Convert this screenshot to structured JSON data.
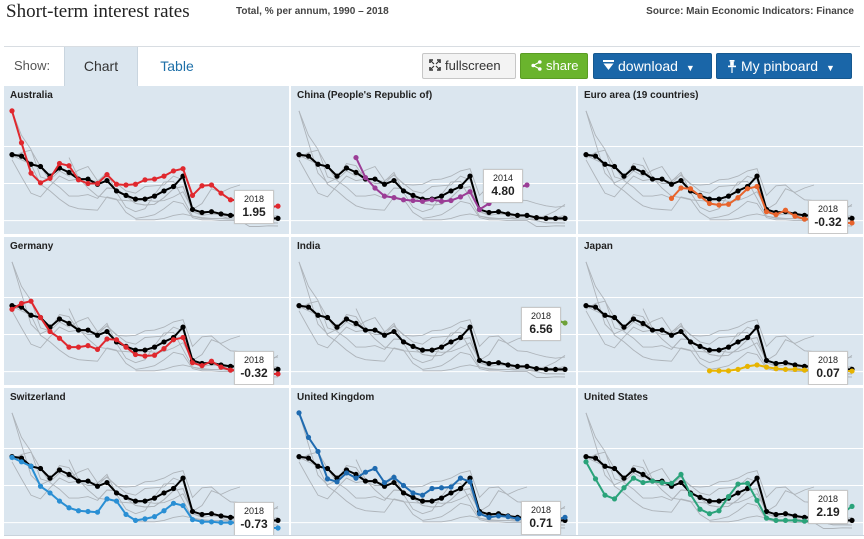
{
  "header": {
    "title": "Short-term interest rates",
    "subtitle": "Total, % per annum, 1990 – 2018",
    "source": "Source: Main Economic Indicators: Finance"
  },
  "toolbar": {
    "show_label": "Show:",
    "tab_chart": "Chart",
    "tab_table": "Table",
    "fullscreen_label": "fullscreen",
    "share_label": "share",
    "download_label": "download",
    "pinboard_label": "My pinboard"
  },
  "icons": {
    "fullscreen": "fullscreen-icon",
    "share": "share-icon",
    "download": "download-icon",
    "pin": "pin-icon",
    "caret": "chevron-down-icon"
  },
  "colors": {
    "panel_bg": "#dbe6ef",
    "oecd_series": "#000000",
    "background_series": "#aeb4ba",
    "share_green": "#6ab42d",
    "button_blue": "#1a66a8"
  },
  "chart_data": {
    "type": "line",
    "layout": "small-multiples",
    "x_range": [
      1990,
      2018
    ],
    "ylim": [
      -1,
      16
    ],
    "grid": true,
    "highlight_series": "OECD - Total",
    "panels": [
      {
        "name": "Australia",
        "color": "#e0282e",
        "values": [
          14.8,
          10.5,
          6.4,
          5.1,
          5.7,
          7.7,
          7.4,
          5.5,
          5.0,
          5.0,
          6.2,
          4.9,
          4.8,
          4.9,
          5.5,
          5.6,
          6.0,
          6.7,
          7.0,
          3.4,
          4.7,
          4.8,
          3.7,
          2.8,
          2.7,
          2.3,
          2.0,
          1.8,
          1.95
        ],
        "callout_year": "2018",
        "callout_value": "1.95"
      },
      {
        "name": "China (People's Republic of)",
        "color": "#9b3d96",
        "values": [
          null,
          null,
          null,
          null,
          null,
          null,
          8.5,
          5.8,
          4.4,
          3.3,
          3.1,
          2.8,
          2.7,
          2.6,
          2.8,
          2.6,
          2.7,
          3.2,
          3.9,
          1.5,
          2.3,
          4.3,
          3.8,
          4.4,
          4.8,
          null,
          null,
          null,
          null
        ],
        "callout_year": "2014",
        "callout_value": "4.80"
      },
      {
        "name": "Euro area (19 countries)",
        "color": "#e8642c",
        "values": [
          null,
          null,
          null,
          null,
          null,
          null,
          null,
          null,
          null,
          3.0,
          4.4,
          4.3,
          3.3,
          2.3,
          2.1,
          2.2,
          3.1,
          4.3,
          4.6,
          1.2,
          0.8,
          1.4,
          0.6,
          0.2,
          0.2,
          0.0,
          -0.3,
          -0.3,
          -0.32
        ],
        "callout_year": "2018",
        "callout_value": "-0.32"
      },
      {
        "name": "Germany",
        "color": "#e0282e",
        "values": [
          8.4,
          9.2,
          9.5,
          7.3,
          5.4,
          4.5,
          3.3,
          3.3,
          3.5,
          3.0,
          4.4,
          4.3,
          3.3,
          2.3,
          2.1,
          2.2,
          3.1,
          4.3,
          4.6,
          1.2,
          0.8,
          1.4,
          0.6,
          0.2,
          0.2,
          0.0,
          -0.3,
          -0.3,
          -0.32
        ],
        "callout_year": "2018",
        "callout_value": "-0.32"
      },
      {
        "name": "India",
        "color": "#6fa23a",
        "values": [
          null,
          null,
          null,
          null,
          null,
          null,
          null,
          null,
          null,
          null,
          null,
          null,
          null,
          null,
          null,
          null,
          null,
          null,
          null,
          null,
          null,
          null,
          null,
          null,
          null,
          null,
          null,
          null,
          null
        ],
        "tail": [
          {
            "x": 2014,
            "y": 8.3
          },
          {
            "x": 2018,
            "y": 6.56
          }
        ],
        "callout_year": "2018",
        "callout_value": "6.56"
      },
      {
        "name": "Japan",
        "color": "#e7b400",
        "values": [
          null,
          null,
          null,
          null,
          null,
          null,
          null,
          null,
          null,
          null,
          null,
          null,
          null,
          0.1,
          0.1,
          0.1,
          0.3,
          0.7,
          0.9,
          0.6,
          0.4,
          0.3,
          0.3,
          0.2,
          0.2,
          0.2,
          0.1,
          0.1,
          0.07
        ],
        "callout_year": "2018",
        "callout_value": "0.07"
      },
      {
        "name": "Switzerland",
        "color": "#2a8fd4",
        "values": [
          8.8,
          8.2,
          7.6,
          4.9,
          4.0,
          2.9,
          2.0,
          1.6,
          1.5,
          1.4,
          3.2,
          2.9,
          1.1,
          0.3,
          0.5,
          0.8,
          1.6,
          2.6,
          2.3,
          0.4,
          0.1,
          0.1,
          0.0,
          0.0,
          0.0,
          -0.8,
          -0.8,
          -0.7,
          -0.73
        ],
        "callout_year": "2018",
        "callout_value": "-0.73"
      },
      {
        "name": "United Kingdom",
        "color": "#1f6bb0",
        "values": [
          14.8,
          11.5,
          9.6,
          5.9,
          5.5,
          6.7,
          6.0,
          6.8,
          7.3,
          5.4,
          6.1,
          5.0,
          4.0,
          3.7,
          4.6,
          4.7,
          4.8,
          6.0,
          5.5,
          1.2,
          0.7,
          0.9,
          0.8,
          0.5,
          0.5,
          0.6,
          0.5,
          0.4,
          0.71
        ],
        "callout_year": "2018",
        "callout_value": "0.71"
      },
      {
        "name": "United States",
        "color": "#2aa37a",
        "values": [
          8.2,
          5.9,
          3.7,
          3.2,
          4.7,
          6.0,
          5.4,
          5.6,
          5.4,
          5.3,
          6.5,
          3.8,
          1.8,
          1.2,
          1.6,
          3.5,
          5.2,
          5.3,
          3.0,
          0.6,
          0.3,
          0.3,
          0.3,
          0.2,
          0.2,
          0.3,
          0.7,
          1.3,
          2.19
        ],
        "callout_year": "2018",
        "callout_value": "2.19"
      }
    ],
    "oecd_total": [
      8.9,
      8.7,
      7.6,
      7.3,
      6.0,
      7.1,
      6.5,
      5.6,
      5.6,
      4.9,
      5.4,
      4.0,
      3.4,
      2.9,
      2.9,
      3.3,
      4.0,
      4.6,
      6.0,
      1.5,
      1.1,
      1.2,
      0.9,
      0.7,
      0.7,
      0.4,
      0.3,
      0.3,
      0.3
    ]
  }
}
